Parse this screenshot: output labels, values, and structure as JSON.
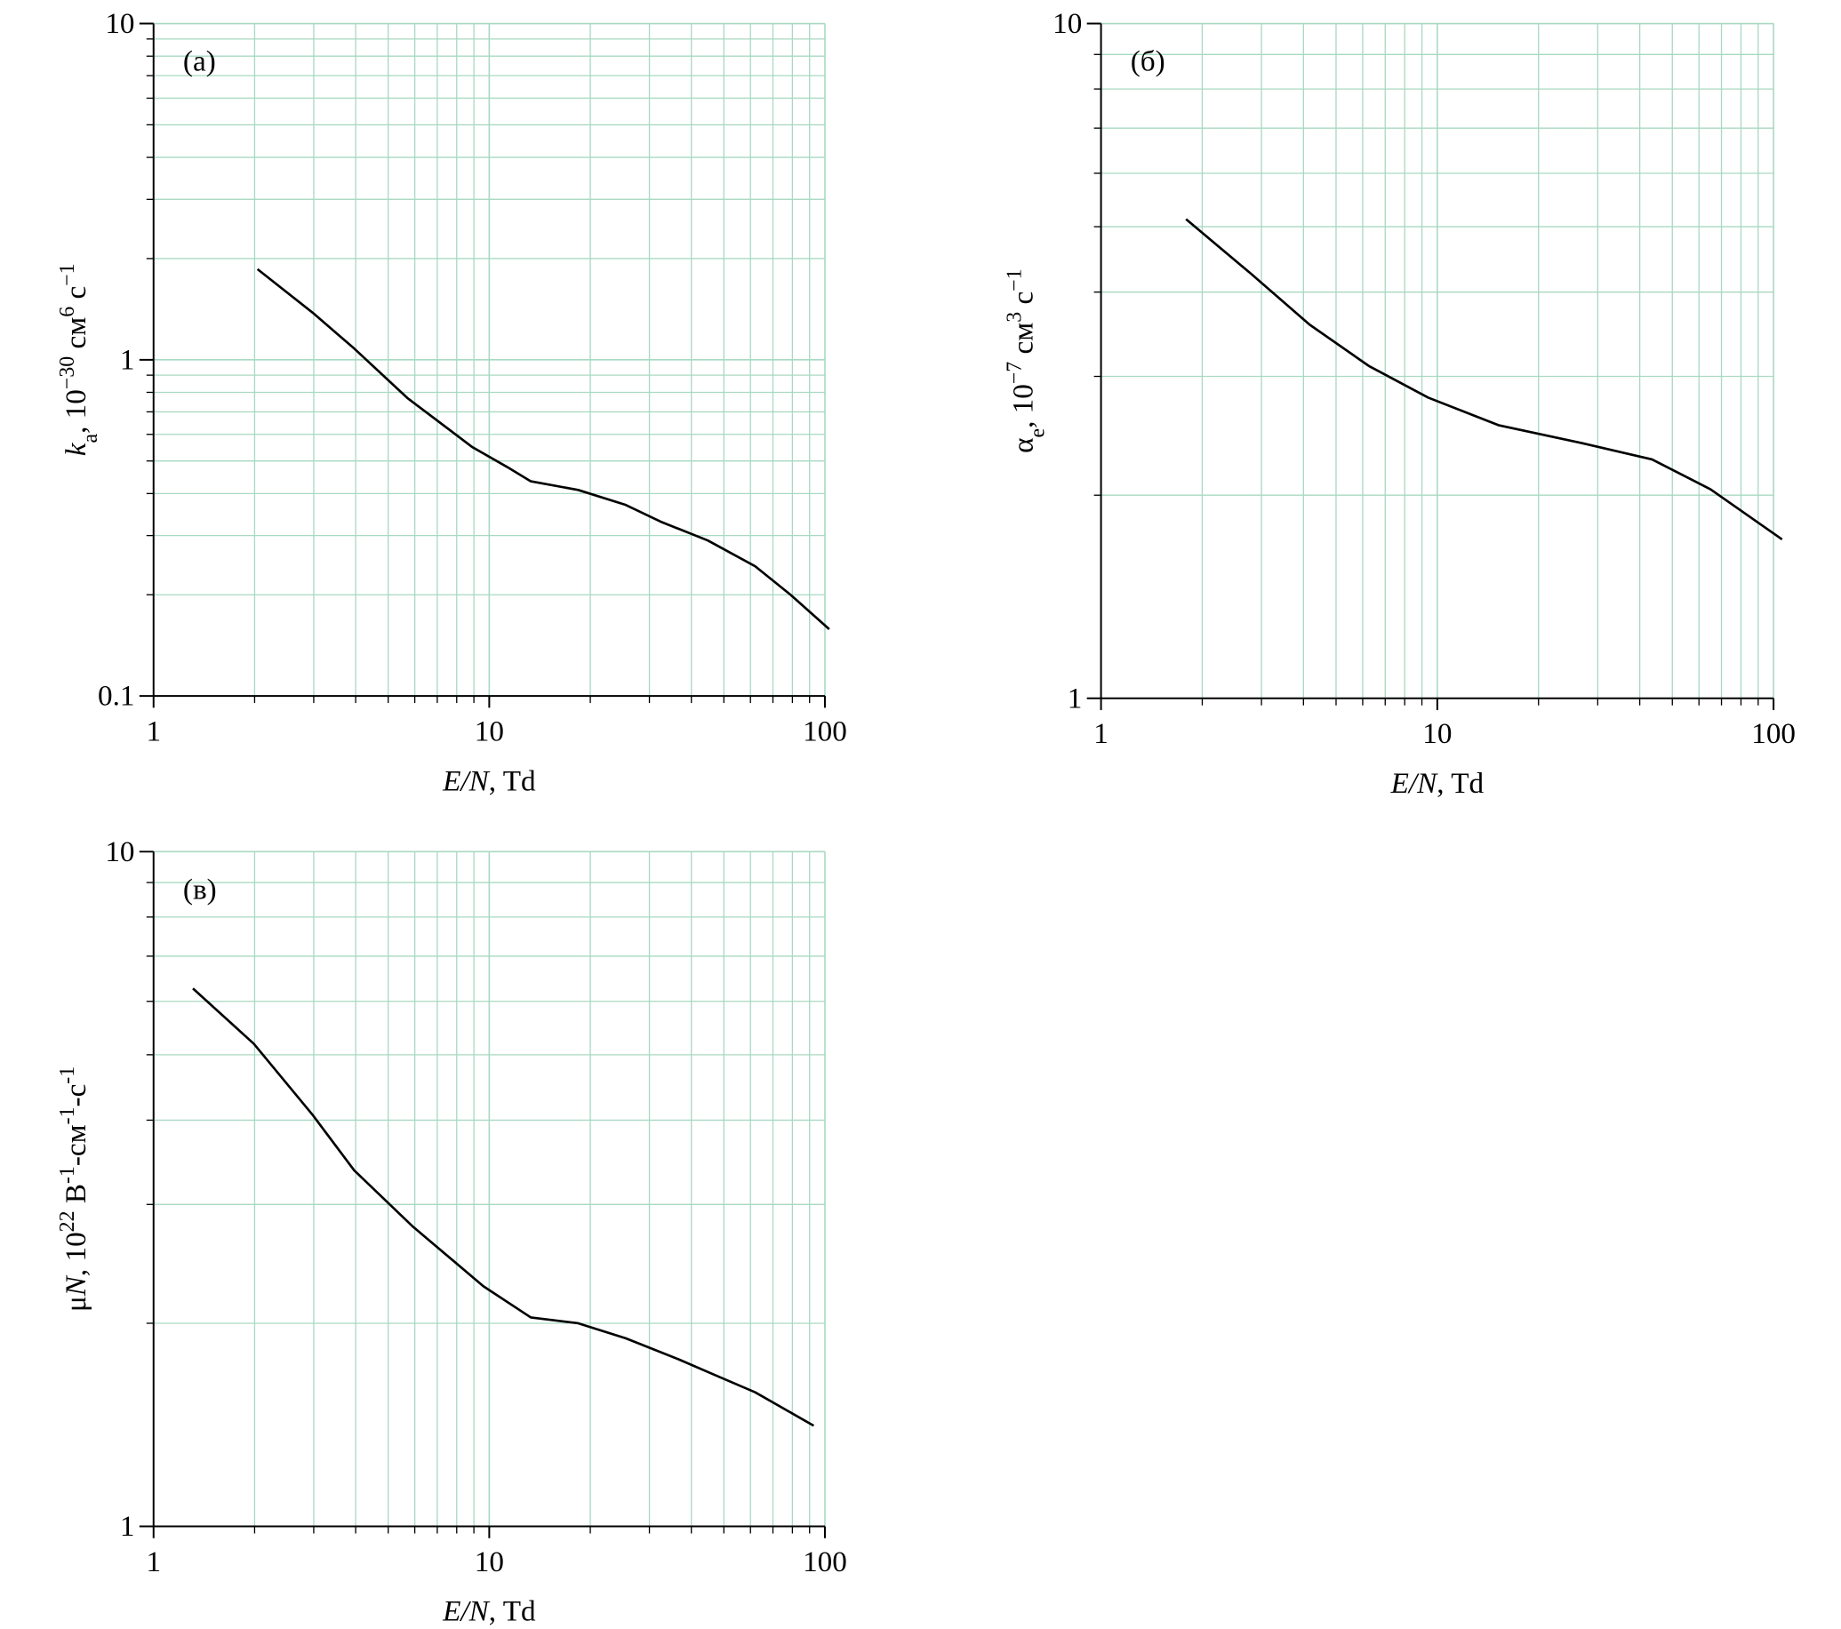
{
  "chart_data": [
    {
      "type": "line",
      "panel_label": "(а)",
      "xlabel": [
        {
          "text": "E/N",
          "italic": true
        },
        {
          "text": ", Td"
        }
      ],
      "ylabel": [
        {
          "text": "k",
          "italic": true
        },
        {
          "text": "a",
          "sub": true
        },
        {
          "text": ", 10"
        },
        {
          "text": "−30",
          "sup": true
        },
        {
          "text": " см"
        },
        {
          "text": "6",
          "sup": true
        },
        {
          "text": " с"
        },
        {
          "text": "−1",
          "sup": true
        }
      ],
      "xlog": true,
      "ylog": true,
      "grid": true,
      "grid_color": "#a9d9c2",
      "xlim": [
        1,
        100
      ],
      "xticks": [
        1,
        10,
        100
      ],
      "ylim": [
        0.1,
        10
      ],
      "yticks": [
        0.1,
        1,
        10
      ],
      "series": [
        {
          "color": "#000000",
          "x": [
            2.04,
            2.98,
            3.96,
            5.7,
            8.9,
            11.3,
            13.3,
            18.4,
            25.5,
            32.4,
            44.8,
            62,
            79,
            103
          ],
          "values": [
            1.86,
            1.38,
            1.08,
            0.77,
            0.55,
            0.48,
            0.435,
            0.41,
            0.37,
            0.33,
            0.29,
            0.243,
            0.2,
            0.158
          ]
        }
      ]
    },
    {
      "type": "line",
      "panel_label": "(б)",
      "xlabel": [
        {
          "text": "E/N",
          "italic": true
        },
        {
          "text": ", Td"
        }
      ],
      "ylabel": [
        {
          "text": "α"
        },
        {
          "text": "e",
          "sub": true
        },
        {
          "text": ", 10"
        },
        {
          "text": "−7",
          "sup": true
        },
        {
          "text": " см"
        },
        {
          "text": "3",
          "sup": true
        },
        {
          "text": " с"
        },
        {
          "text": "−1",
          "sup": true
        }
      ],
      "xlog": true,
      "ylog": true,
      "grid": true,
      "grid_color": "#a9d9c2",
      "xlim": [
        1,
        100
      ],
      "xticks": [
        1,
        10,
        100
      ],
      "ylim": [
        1,
        10
      ],
      "yticks": [
        1,
        10
      ],
      "series": [
        {
          "color": "#000000",
          "x": [
            1.79,
            2.79,
            4.17,
            6.25,
            9.4,
            15.2,
            26.8,
            43.5,
            65,
            106
          ],
          "values": [
            5.13,
            4.26,
            3.58,
            3.11,
            2.79,
            2.54,
            2.39,
            2.26,
            2.04,
            1.72
          ]
        }
      ]
    },
    {
      "type": "line",
      "panel_label": "(в)",
      "xlabel": [
        {
          "text": "E/N",
          "italic": true
        },
        {
          "text": ", Td"
        }
      ],
      "ylabel": [
        {
          "text": "μ"
        },
        {
          "text": "N",
          "italic": true
        },
        {
          "text": ", 10"
        },
        {
          "text": "22",
          "sup": true
        },
        {
          "text": " В"
        },
        {
          "text": "-1",
          "sup": true
        },
        {
          "text": "-см"
        },
        {
          "text": "-1",
          "sup": true
        },
        {
          "text": "-с"
        },
        {
          "text": "-1",
          "sup": true
        }
      ],
      "xlog": true,
      "ylog": true,
      "grid": true,
      "grid_color": "#a9d9c2",
      "xlim": [
        1,
        100
      ],
      "xticks": [
        1,
        10,
        100
      ],
      "ylim": [
        1,
        10
      ],
      "yticks": [
        1,
        10
      ],
      "series": [
        {
          "color": "#000000",
          "x": [
            1.31,
            1.99,
            2.98,
            3.96,
            5.93,
            9.6,
            13.3,
            18.4,
            25.5,
            36.5,
            46.5,
            62,
            92.6
          ],
          "values": [
            6.27,
            5.19,
            4.07,
            3.37,
            2.78,
            2.27,
            2.04,
            2.0,
            1.9,
            1.77,
            1.68,
            1.58,
            1.41
          ]
        }
      ]
    }
  ]
}
